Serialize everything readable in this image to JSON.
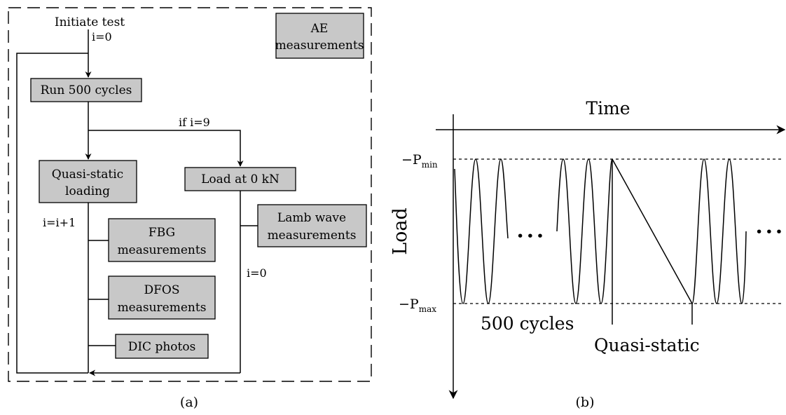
{
  "panel_a": {
    "caption": "(a)",
    "start_label": "Initiate test",
    "init_index": "i=0",
    "ae_box": {
      "line1": "AE",
      "line2": "measurements"
    },
    "run_box": "Run 500 cycles",
    "branch_condition": "if i=9",
    "quasi_box": {
      "line1": "Quasi-static",
      "line2": "loading"
    },
    "load_box": "Load at 0 kN",
    "increment_label": "i=i+1",
    "reset_label": "i=0",
    "lamb_box": {
      "line1": "Lamb wave",
      "line2": "measurements"
    },
    "fbg_box": {
      "line1": "FBG",
      "line2": "measurements"
    },
    "dfos_box": {
      "line1": "DFOS",
      "line2": "measurements"
    },
    "dic_box": "DIC photos"
  },
  "panel_b": {
    "caption": "(b)",
    "time_label": "Time",
    "load_label": "Load",
    "pmin_prefix": "−P",
    "pmin_sub": "min",
    "pmax_prefix": "−P",
    "pmax_sub": "max",
    "ellipsis": "•••",
    "cycles_label": "500 cycles",
    "quasi_label": "Quasi-static",
    "waveform": {
      "pattern": [
        {
          "segment": "cyclic",
          "cycles": 3
        },
        {
          "segment": "ellipsis"
        },
        {
          "segment": "cyclic",
          "cycles": 3
        },
        {
          "segment": "quasi-static-ramp"
        },
        {
          "segment": "cyclic",
          "cycles": 3
        },
        {
          "segment": "ellipsis"
        }
      ]
    }
  }
}
